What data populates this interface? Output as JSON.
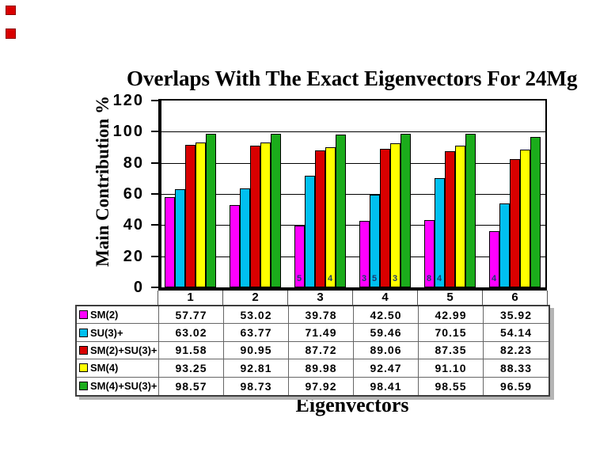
{
  "decorations": {
    "red_mark_color": "#D90000",
    "red_mark_border": "#8B0000"
  },
  "chart_data": {
    "type": "bar",
    "title": "Overlaps With The Exact Eigenvectors For 24Mg",
    "xlabel": "Eigenvectors",
    "ylabel": "Main Contribution %",
    "ylim": [
      0,
      120
    ],
    "yticks": [
      120,
      100,
      80,
      60,
      40,
      20,
      0
    ],
    "grid": "horizontal-black-lines",
    "legend_position": "table-rows-left-of-data-table",
    "categories": [
      "1",
      "2",
      "3",
      "4",
      "5",
      "6"
    ],
    "series": [
      {
        "name": "SM(2)",
        "color": "#FF00FF",
        "values": [
          "57.77",
          "53.02",
          "39.78",
          "42.50",
          "42.99",
          "35.92"
        ]
      },
      {
        "name": "SU(3)+",
        "color": "#00C0F0",
        "values": [
          "63.02",
          "63.77",
          "71.49",
          "59.46",
          "70.15",
          "54.14"
        ]
      },
      {
        "name": "SM(2)+SU(3)+",
        "color": "#D90000",
        "values": [
          "91.58",
          "90.95",
          "87.72",
          "89.06",
          "87.35",
          "82.23"
        ]
      },
      {
        "name": "SM(4)",
        "color": "#FFFF00",
        "values": [
          "93.25",
          "92.81",
          "89.98",
          "92.47",
          "91.10",
          "88.33"
        ]
      },
      {
        "name": "SM(4)+SU(3)+",
        "color": "#1BAC1B",
        "values": [
          "98.57",
          "98.73",
          "97.92",
          "98.41",
          "98.55",
          "96.59"
        ]
      }
    ],
    "bar_annotations": [
      {
        "category": "3",
        "series": "SM(2)",
        "text": "5"
      },
      {
        "category": "3",
        "series": "SM(4)",
        "text": "4"
      },
      {
        "category": "4",
        "series": "SM(2)",
        "text": "3"
      },
      {
        "category": "4",
        "series": "SU(3)+",
        "text": "5"
      },
      {
        "category": "4",
        "series": "SM(4)",
        "text": "3"
      },
      {
        "category": "5",
        "series": "SM(2)",
        "text": "8"
      },
      {
        "category": "5",
        "series": "SU(3)+",
        "text": "4"
      },
      {
        "category": "6",
        "series": "SM(2)",
        "text": "4"
      }
    ],
    "annotation_color": "#1B3A6E"
  }
}
